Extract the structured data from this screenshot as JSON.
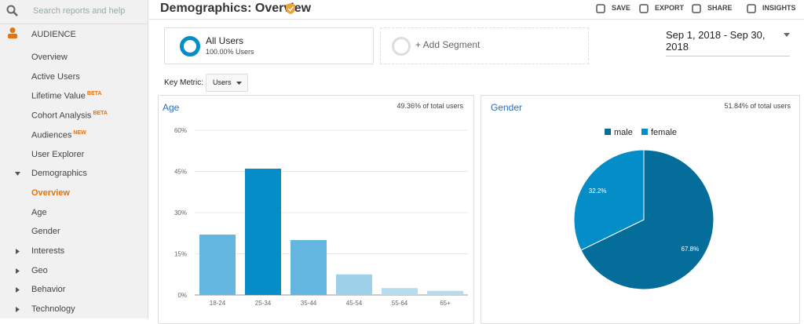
{
  "sidebar": {
    "search_placeholder": "Search reports and help",
    "section": "AUDIENCE",
    "items": [
      {
        "label": "Overview"
      },
      {
        "label": "Active Users"
      },
      {
        "label": "Lifetime Value",
        "badge": "BETA"
      },
      {
        "label": "Cohort Analysis",
        "badge": "BETA"
      },
      {
        "label": "Audiences",
        "badge": "NEW"
      },
      {
        "label": "User Explorer"
      },
      {
        "label": "Demographics",
        "toggle": "open"
      },
      {
        "label": "Overview",
        "active": true
      },
      {
        "label": "Age"
      },
      {
        "label": "Gender"
      },
      {
        "label": "Interests",
        "toggle": "closed"
      },
      {
        "label": "Geo",
        "toggle": "closed"
      },
      {
        "label": "Behavior",
        "toggle": "closed"
      },
      {
        "label": "Technology",
        "toggle": "closed"
      }
    ]
  },
  "header": {
    "title": "Demographics: Overview",
    "actions": [
      "SAVE",
      "EXPORT",
      "SHARE",
      "INSIGHTS"
    ]
  },
  "segments": {
    "name": "All Users",
    "share": "100.00% Users",
    "add": "+ Add Segment"
  },
  "date_range": "Sep 1, 2018 - Sep 30, 2018",
  "key_metric": {
    "label": "Key Metric:",
    "value": "Users"
  },
  "chart_data": [
    {
      "type": "bar",
      "title": "Age",
      "subtitle": "49.36% of total users",
      "categories": [
        "18-24",
        "25-34",
        "35-44",
        "45-54",
        "55-64",
        "65+"
      ],
      "values": [
        22,
        46,
        20,
        7.5,
        2.5,
        1.5
      ],
      "colors": [
        "#62b6e0",
        "#058dc7",
        "#62b6e0",
        "#9fd0ea",
        "#b5dcef",
        "#b5dcef"
      ],
      "ylim": [
        0,
        60
      ],
      "yticks": [
        {
          "value": 0,
          "label": "0%"
        },
        {
          "value": 15,
          "label": "15%"
        },
        {
          "value": 30,
          "label": "30%"
        },
        {
          "value": 45,
          "label": "45%"
        },
        {
          "value": 60,
          "label": "60%"
        }
      ],
      "grid": true
    },
    {
      "type": "pie",
      "title": "Gender",
      "subtitle": "51.84% of total users",
      "series": [
        {
          "name": "male",
          "color": "#056d99",
          "values": [
            67.8
          ],
          "value_labels": [
            "67.8%"
          ]
        },
        {
          "name": "female",
          "color": "#058dc7",
          "values": [
            32.2
          ],
          "value_labels": [
            "32.2%"
          ]
        }
      ],
      "legend": "top"
    }
  ]
}
